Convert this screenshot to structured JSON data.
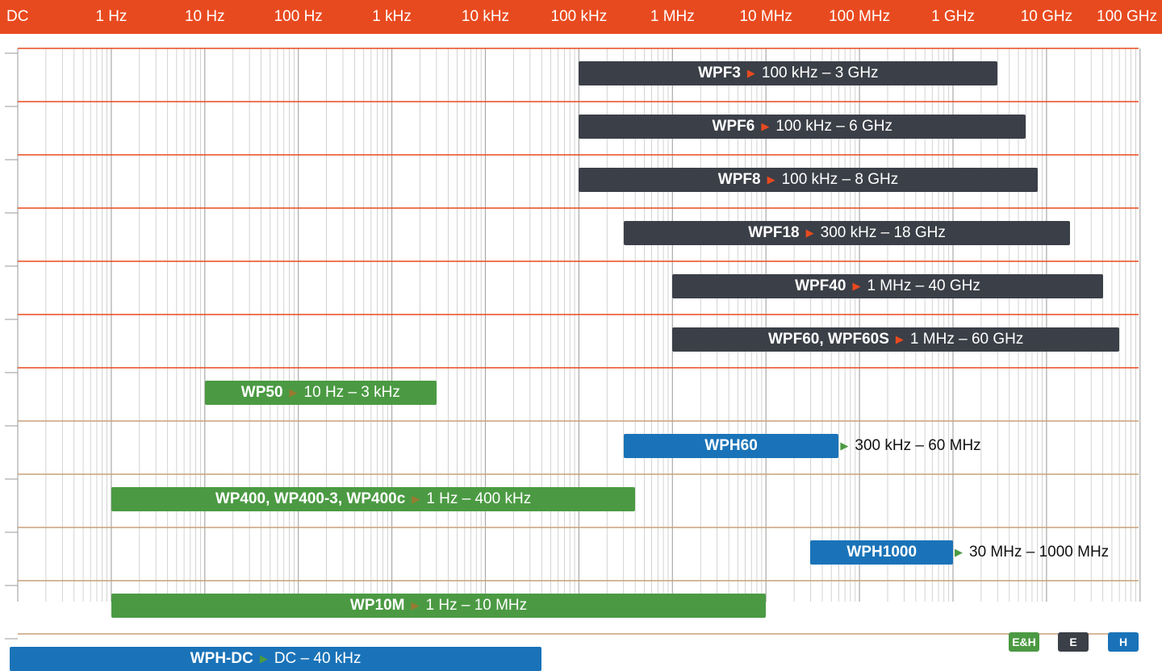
{
  "colors": {
    "header": "#e84a1f",
    "grid_major": "#e84a1f",
    "grid_minor": "#c8c8c8",
    "grid_lower": "#c9a07a",
    "E": "#3b3f47",
    "EH": "#4b9a43",
    "H": "#1a73b8",
    "arrow_E": "#e84a1f",
    "arrow_EH": "#9a7a30",
    "arrow_H": "#4b9a43"
  },
  "chart_data": {
    "type": "bar",
    "x_scale": "log",
    "x_ticks": [
      "DC",
      "1 Hz",
      "10 Hz",
      "100 Hz",
      "1 kHz",
      "10 kHz",
      "100 kHz",
      "1 MHz",
      "10 MHz",
      "100 MHz",
      "1 GHz",
      "10 GHz",
      "100 GHz"
    ],
    "grid": true,
    "legend_position": "bottom-right",
    "series": [
      {
        "name": "WPF3",
        "range": "100 kHz – 3 GHz",
        "start_hz": 100000,
        "end_hz": 3000000000,
        "type": "E"
      },
      {
        "name": "WPF6",
        "range": "100 kHz – 6 GHz",
        "start_hz": 100000,
        "end_hz": 6000000000,
        "type": "E"
      },
      {
        "name": "WPF8",
        "range": "100 kHz – 8 GHz",
        "start_hz": 100000,
        "end_hz": 8000000000,
        "type": "E"
      },
      {
        "name": "WPF18",
        "range": "300 kHz – 18 GHz",
        "start_hz": 300000,
        "end_hz": 18000000000,
        "type": "E"
      },
      {
        "name": "WPF40",
        "range": "1 MHz – 40 GHz",
        "start_hz": 1000000,
        "end_hz": 40000000000,
        "type": "E"
      },
      {
        "name": "WPF60, WPF60S",
        "range": "1 MHz – 60 GHz",
        "start_hz": 1000000,
        "end_hz": 60000000000,
        "type": "E"
      },
      {
        "name": "WP50",
        "range": "10 Hz – 3 kHz",
        "start_hz": 10,
        "end_hz": 3000,
        "type": "EH"
      },
      {
        "name": "WPH60",
        "range": "300 kHz – 60 MHz",
        "start_hz": 300000,
        "end_hz": 60000000,
        "type": "H"
      },
      {
        "name": "WP400, WP400-3, WP400c",
        "range": "1 Hz – 400 kHz",
        "start_hz": 1,
        "end_hz": 400000,
        "type": "EH"
      },
      {
        "name": "WPH1000",
        "range": "30 MHz – 1000 MHz",
        "start_hz": 30000000,
        "end_hz": 1000000000,
        "type": "H"
      },
      {
        "name": "WP10M",
        "range": "1 Hz – 10 MHz",
        "start_hz": 1,
        "end_hz": 10000000,
        "type": "EH"
      },
      {
        "name": "WPH-DC",
        "range": "DC – 40 kHz",
        "start_hz": 0,
        "end_hz": 40000,
        "type": "H"
      }
    ],
    "legend": [
      {
        "label": "E&H",
        "type": "EH"
      },
      {
        "label": "E",
        "type": "E"
      },
      {
        "label": "H",
        "type": "H"
      }
    ]
  }
}
